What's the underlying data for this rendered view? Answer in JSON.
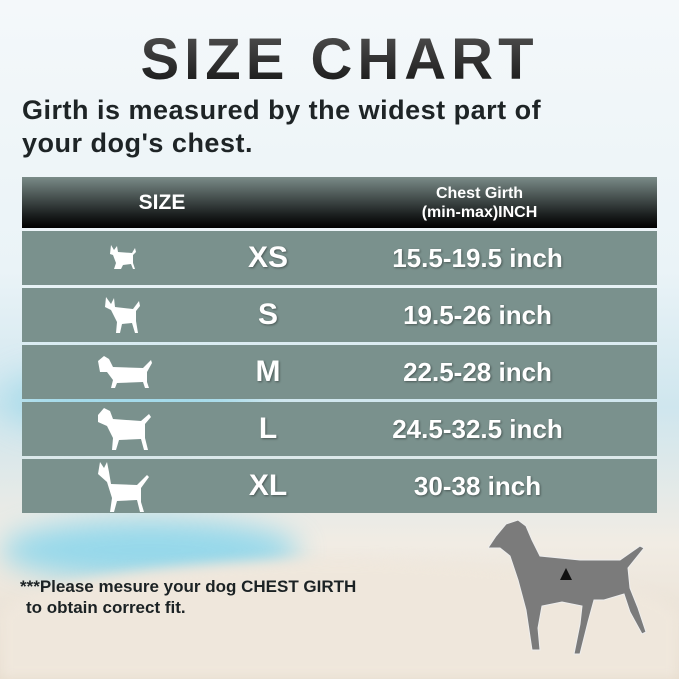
{
  "title": "SIZE CHART",
  "intro": [
    "Girth is measured by the widest part of",
    "your dog's chest."
  ],
  "table": {
    "headers": {
      "size": "SIZE",
      "girth_line1": "Chest Girth",
      "girth_line2": "(min-max)INCH"
    },
    "rows": [
      {
        "size": "XS",
        "girth": "15.5-19.5 inch",
        "icon": "chihuahua-icon"
      },
      {
        "size": "S",
        "girth": "19.5-26 inch",
        "icon": "small-dog-icon"
      },
      {
        "size": "M",
        "girth": "22.5-28 inch",
        "icon": "dachshund-icon"
      },
      {
        "size": "L",
        "girth": "24.5-32.5 inch",
        "icon": "large-dog-icon"
      },
      {
        "size": "XL",
        "girth": "30-38 inch",
        "icon": "great-dane-icon"
      }
    ]
  },
  "note": [
    "***Please mesure your dog CHEST GIRTH",
    "to obtain correct fit."
  ],
  "colors": {
    "row": "#7a918d",
    "header": "#000000",
    "text": "#1e2426"
  }
}
